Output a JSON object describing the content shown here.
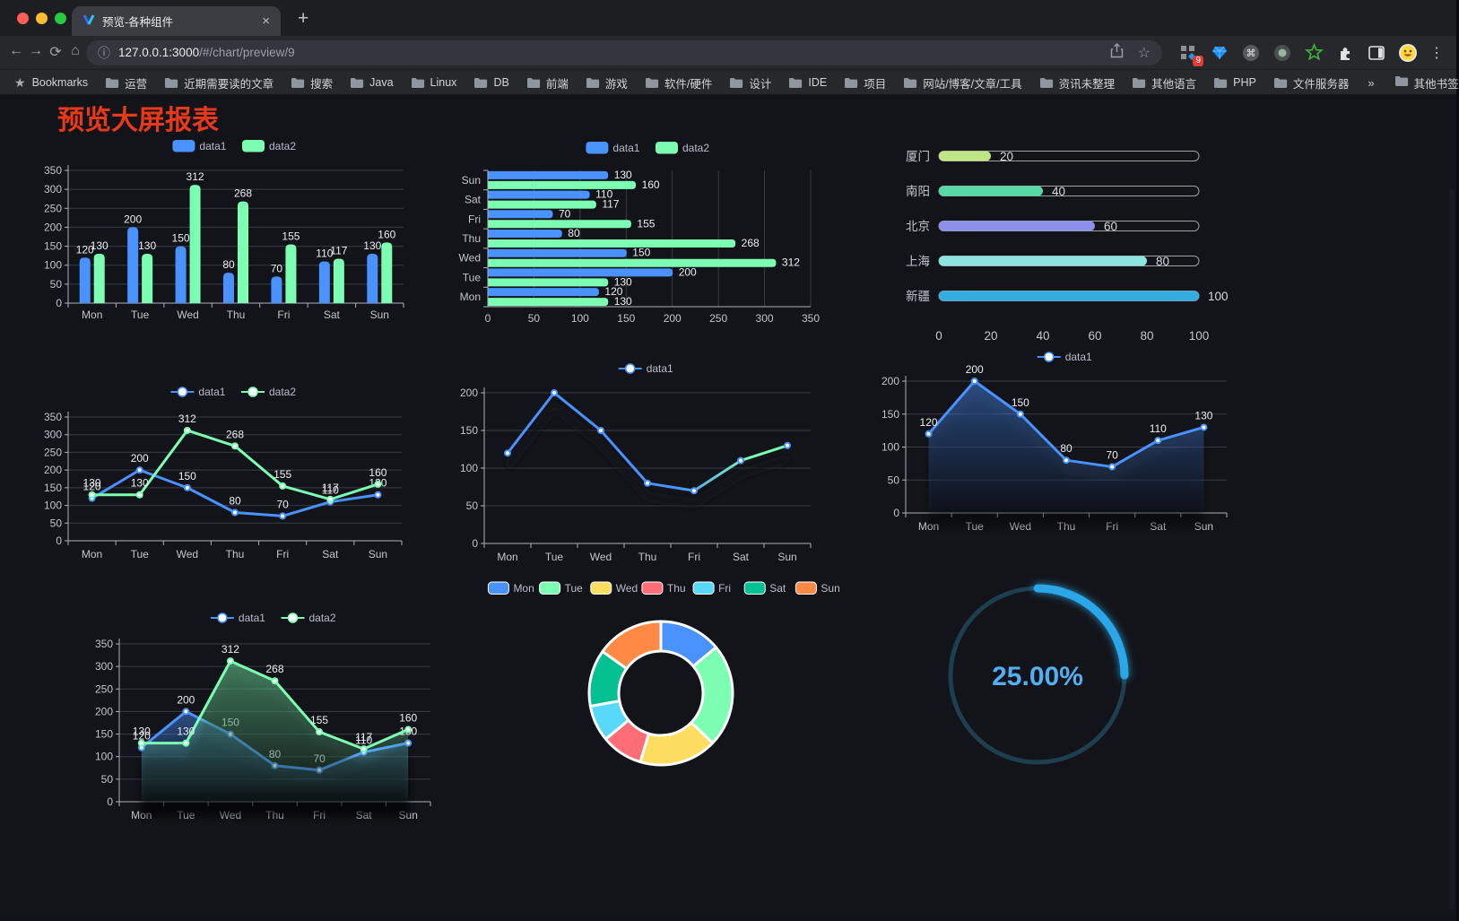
{
  "browser": {
    "tab_title": "预览-各种组件",
    "tab_close": "×",
    "new_tab": "+",
    "url_host": "127.0.0.1:3000",
    "url_path": "/#/chart/preview/9",
    "bookmarks_label": "Bookmarks",
    "bookmark_folders": [
      "运营",
      "近期需要读的文章",
      "搜索",
      "Java",
      "Linux",
      "DB",
      "前端",
      "游戏",
      "软件/硬件",
      "设计",
      "IDE",
      "项目",
      "网站/博客/文章/工具",
      "资讯未整理",
      "其他语言",
      "PHP",
      "文件服务器"
    ],
    "bookmarks_overflow": "»",
    "other_bookmarks": "其他书签",
    "extension_badge": "9"
  },
  "page": {
    "title": "预览大屏报表",
    "title_color": "#e8391a",
    "background": "#131419"
  },
  "palette": {
    "blue": "#4992ff",
    "green": "#7cffb2",
    "yellow": "#fddd60",
    "red": "#ff6e76",
    "light_blue": "#58d9f9",
    "teal": "#05c091",
    "orange": "#ff8a45"
  },
  "chart_data": [
    {
      "id": "bar-grouped",
      "type": "bar",
      "orientation": "vertical",
      "categories": [
        "Mon",
        "Tue",
        "Wed",
        "Thu",
        "Fri",
        "Sat",
        "Sun"
      ],
      "series": [
        {
          "name": "data1",
          "color": "#4992ff",
          "values": [
            120,
            200,
            150,
            80,
            70,
            110,
            130
          ]
        },
        {
          "name": "data2",
          "color": "#7cffb2",
          "values": [
            130,
            130,
            312,
            268,
            155,
            117,
            160
          ]
        }
      ],
      "ylim": [
        0,
        350
      ],
      "yticks": [
        0,
        50,
        100,
        150,
        200,
        250,
        300,
        350
      ],
      "legend_position": "top",
      "labels": true
    },
    {
      "id": "bar-horizontal",
      "type": "bar",
      "orientation": "horizontal",
      "categories": [
        "Mon",
        "Tue",
        "Wed",
        "Thu",
        "Fri",
        "Sat",
        "Sun"
      ],
      "series": [
        {
          "name": "data1",
          "color": "#4992ff",
          "values": [
            120,
            200,
            150,
            80,
            70,
            110,
            130
          ]
        },
        {
          "name": "data2",
          "color": "#7cffb2",
          "values": [
            130,
            130,
            312,
            268,
            155,
            117,
            160
          ]
        }
      ],
      "xlim": [
        0,
        350
      ],
      "xticks": [
        0,
        50,
        100,
        150,
        200,
        250,
        300,
        350
      ],
      "legend_position": "top",
      "labels": true
    },
    {
      "id": "progress-bars",
      "type": "bar",
      "orientation": "horizontal",
      "style": "progress",
      "categories": [
        "厦门",
        "南阳",
        "北京",
        "上海",
        "新疆"
      ],
      "values": [
        20,
        40,
        60,
        80,
        100
      ],
      "colors": [
        "#c0e584",
        "#58d9a3",
        "#8d90e8",
        "#8ce3e0",
        "#35acdf"
      ],
      "xlim": [
        0,
        100
      ],
      "xticks": [
        0,
        20,
        40,
        60,
        80,
        100
      ]
    },
    {
      "id": "line-dual",
      "type": "line",
      "categories": [
        "Mon",
        "Tue",
        "Wed",
        "Thu",
        "Fri",
        "Sat",
        "Sun"
      ],
      "series": [
        {
          "name": "data1",
          "color": "#4992ff",
          "values": [
            120,
            200,
            150,
            80,
            70,
            110,
            130
          ]
        },
        {
          "name": "data2",
          "color": "#7cffb2",
          "values": [
            130,
            130,
            312,
            268,
            155,
            117,
            160
          ]
        }
      ],
      "ylim": [
        0,
        350
      ],
      "yticks": [
        0,
        50,
        100,
        150,
        200,
        250,
        300,
        350
      ],
      "legend_position": "top",
      "labels": true,
      "area": false
    },
    {
      "id": "line-gradient",
      "type": "line",
      "categories": [
        "Mon",
        "Tue",
        "Wed",
        "Thu",
        "Fri",
        "Sat",
        "Sun"
      ],
      "series": [
        {
          "name": "data1",
          "color": "#4992ff",
          "color_end": "#7cffb2",
          "values": [
            120,
            200,
            150,
            80,
            70,
            110,
            130
          ]
        }
      ],
      "ylim": [
        0,
        200
      ],
      "yticks": [
        0,
        50,
        100,
        150,
        200
      ],
      "legend_position": "top",
      "labels": false,
      "area": false,
      "shadow": true
    },
    {
      "id": "line-area",
      "type": "line",
      "categories": [
        "Mon",
        "Tue",
        "Wed",
        "Thu",
        "Fri",
        "Sat",
        "Sun"
      ],
      "series": [
        {
          "name": "data1",
          "color": "#4992ff",
          "values": [
            120,
            200,
            150,
            80,
            70,
            110,
            130
          ]
        }
      ],
      "ylim": [
        0,
        200
      ],
      "yticks": [
        0,
        50,
        100,
        150,
        200
      ],
      "legend_position": "top",
      "labels": true,
      "area": true
    },
    {
      "id": "line-area-dual",
      "type": "line",
      "categories": [
        "Mon",
        "Tue",
        "Wed",
        "Thu",
        "Fri",
        "Sat",
        "Sun"
      ],
      "series": [
        {
          "name": "data1",
          "color": "#4992ff",
          "values": [
            120,
            200,
            150,
            80,
            70,
            110,
            130
          ]
        },
        {
          "name": "data2",
          "color": "#7cffb2",
          "values": [
            130,
            130,
            312,
            268,
            155,
            117,
            160
          ]
        }
      ],
      "ylim": [
        0,
        350
      ],
      "yticks": [
        0,
        50,
        100,
        150,
        200,
        250,
        300,
        350
      ],
      "legend_position": "top",
      "labels": true,
      "area": true
    },
    {
      "id": "pie-donut",
      "type": "pie",
      "donut": true,
      "categories": [
        "Mon",
        "Tue",
        "Wed",
        "Thu",
        "Fri",
        "Sat",
        "Sun"
      ],
      "values": [
        120,
        200,
        150,
        80,
        70,
        110,
        130
      ],
      "colors": [
        "#4992ff",
        "#7cffb2",
        "#fddd60",
        "#ff6e76",
        "#58d9f9",
        "#05c091",
        "#ff8a45"
      ],
      "border_color": "#ffffff",
      "legend_position": "top"
    },
    {
      "id": "gauge",
      "type": "gauge",
      "value": 25,
      "max": 100,
      "display": "25.00%",
      "color": "#2aa7e9",
      "track_color": "#1e3f50",
      "text_color": "#54aef2"
    }
  ]
}
